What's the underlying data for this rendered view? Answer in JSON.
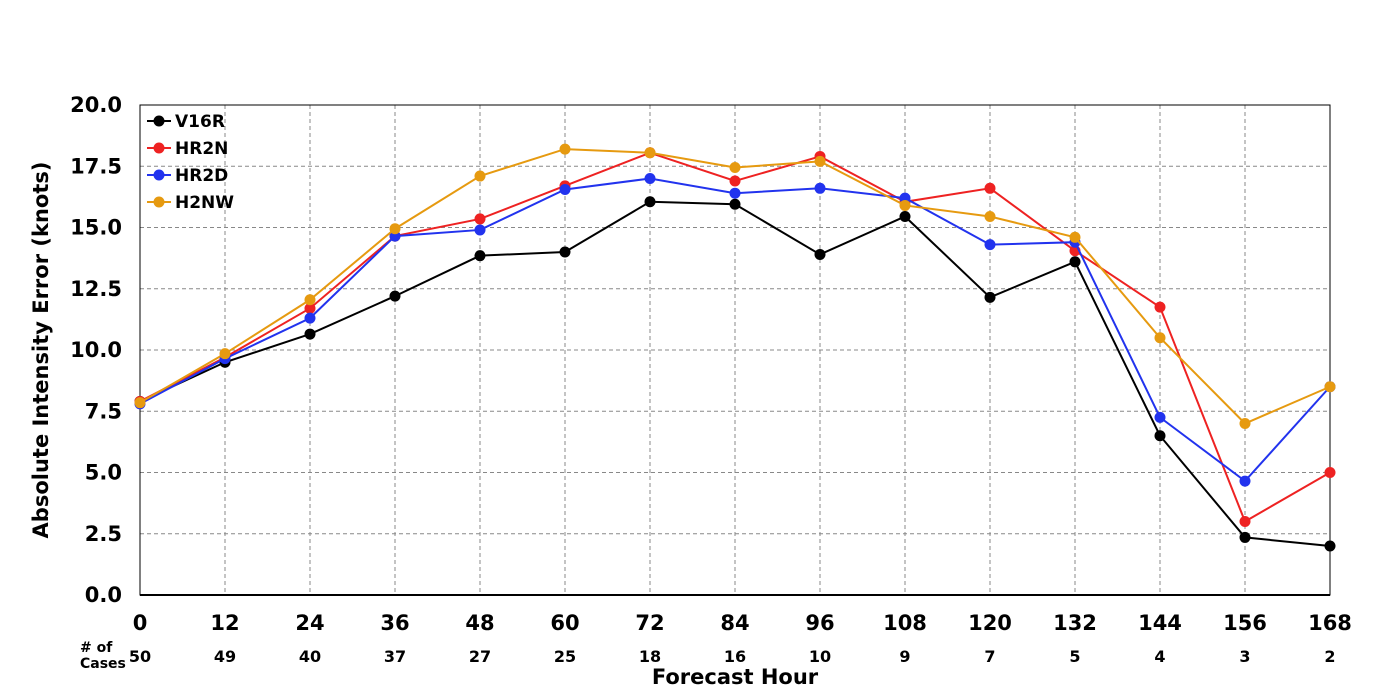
{
  "chart_data": {
    "type": "line",
    "xlabel": "Forecast Hour",
    "ylabel": "Absolute Intensity Error (knots)",
    "x": [
      0,
      12,
      24,
      36,
      48,
      60,
      72,
      84,
      96,
      108,
      120,
      132,
      144,
      156,
      168
    ],
    "ylim": [
      0,
      20
    ],
    "yticks": [
      "0.0",
      "2.5",
      "5.0",
      "7.5",
      "10.0",
      "12.5",
      "15.0",
      "17.5",
      "20.0"
    ],
    "grid": true,
    "legend_position": "top-left",
    "cases_label": "# of Cases",
    "cases_label_lines": [
      "# of",
      "Cases"
    ],
    "cases": [
      50,
      49,
      40,
      37,
      27,
      25,
      18,
      16,
      10,
      9,
      7,
      5,
      4,
      3,
      2
    ],
    "series": [
      {
        "name": "V16R",
        "color": "#000000",
        "values": [
          7.9,
          9.5,
          10.65,
          12.2,
          13.85,
          14.0,
          16.05,
          15.95,
          13.9,
          15.45,
          12.15,
          13.6,
          6.5,
          2.35,
          2.0
        ]
      },
      {
        "name": "HR2N",
        "color": "#ee2222",
        "values": [
          7.9,
          9.7,
          11.7,
          14.65,
          15.35,
          16.7,
          18.05,
          16.9,
          17.9,
          16.05,
          16.6,
          14.05,
          11.75,
          3.0,
          5.0
        ]
      },
      {
        "name": "HR2D",
        "color": "#2233ee",
        "values": [
          7.8,
          9.65,
          11.3,
          14.65,
          14.9,
          16.55,
          17.0,
          16.4,
          16.6,
          16.2,
          14.3,
          14.4,
          7.25,
          4.65,
          8.5
        ]
      },
      {
        "name": "H2NW",
        "color": "#e69a10",
        "values": [
          7.85,
          9.85,
          12.05,
          14.95,
          17.1,
          18.2,
          18.05,
          17.45,
          17.7,
          15.9,
          15.45,
          14.6,
          10.5,
          7.0,
          8.5
        ]
      }
    ]
  }
}
